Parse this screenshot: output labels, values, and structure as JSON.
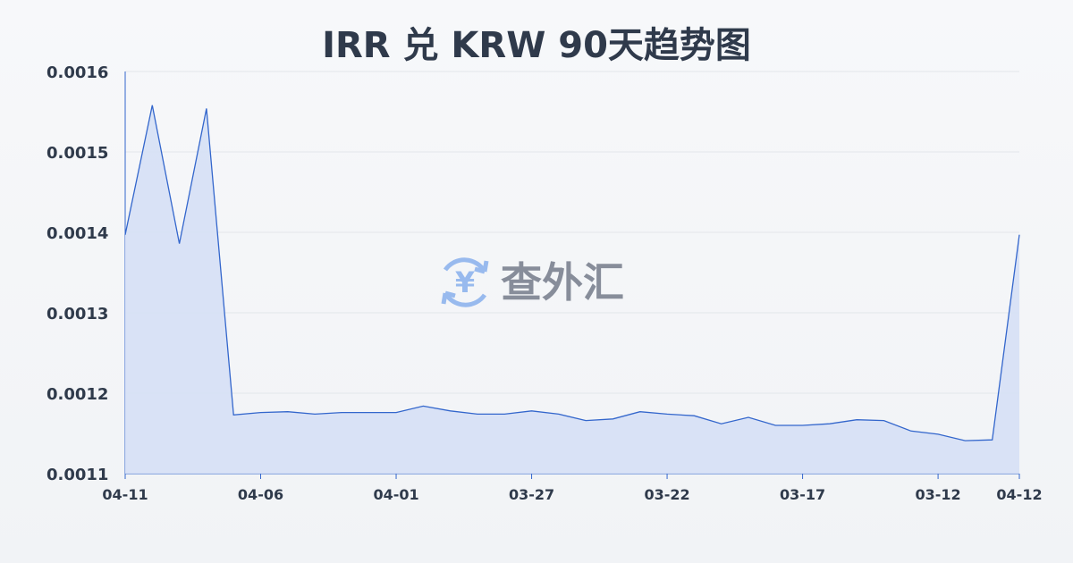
{
  "chart_data": {
    "type": "area",
    "title": "IRR 兑 KRW 90天趋势图",
    "xlabel": "",
    "ylabel": "",
    "ylim": [
      0.0011,
      0.0016
    ],
    "yticks": [
      "0.0016",
      "0.0015",
      "0.0014",
      "0.0013",
      "0.0012",
      "0.0011"
    ],
    "xticks": [
      "04-11",
      "04-06",
      "04-01",
      "03-27",
      "03-22",
      "03-17",
      "03-12",
      "04-12"
    ],
    "grid": true,
    "colors": {
      "line": "#3366cc",
      "fill": "#d6e0f5"
    },
    "x": [
      "04-11",
      "04-10",
      "04-09",
      "04-08",
      "04-07",
      "04-06",
      "04-05",
      "04-04",
      "04-03",
      "04-02",
      "04-01",
      "03-31",
      "03-30",
      "03-29",
      "03-28",
      "03-27",
      "03-26",
      "03-25",
      "03-24",
      "03-23",
      "03-22",
      "03-21",
      "03-20",
      "03-19",
      "03-18",
      "03-17",
      "03-16",
      "03-15",
      "03-14",
      "03-13",
      "03-12",
      "03-11",
      "03-10",
      "04-12"
    ],
    "values": [
      0.001397,
      0.001558,
      0.001386,
      0.001554,
      0.001173,
      0.001176,
      0.001177,
      0.001174,
      0.001176,
      0.001176,
      0.001176,
      0.001184,
      0.001178,
      0.001174,
      0.001174,
      0.001178,
      0.001174,
      0.001166,
      0.001168,
      0.001177,
      0.001174,
      0.001172,
      0.001162,
      0.00117,
      0.00116,
      0.00116,
      0.001162,
      0.001167,
      0.001166,
      0.001153,
      0.001149,
      0.001141,
      0.001142,
      0.001397
    ]
  },
  "watermark": {
    "text": "查外汇",
    "icon": "yen-exchange-icon"
  }
}
